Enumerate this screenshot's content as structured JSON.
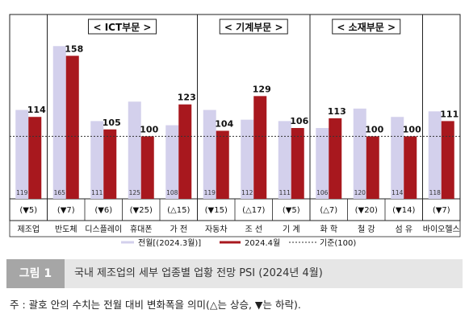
{
  "chart_data": {
    "type": "bar",
    "groups": [
      {
        "label": "< ICT부문 >",
        "start": 1,
        "end": 5
      },
      {
        "label": "< 기계부문 >",
        "start": 5,
        "end": 8
      },
      {
        "label": "< 소재부문 >",
        "start": 8,
        "end": 11
      }
    ],
    "categories": [
      "제조업",
      "반도체",
      "디스플레이",
      "휴대폰",
      "가 전",
      "자동차",
      "조 선",
      "기 계",
      "화 학",
      "철 강",
      "섬 유",
      "바이오헬스"
    ],
    "series": [
      {
        "name": "전월[(2024.3월)]",
        "color": "#d3d0ec",
        "values": [
          119,
          165,
          111,
          125,
          108,
          119,
          112,
          111,
          106,
          120,
          114,
          118
        ]
      },
      {
        "name": "2024.4월",
        "color": "#a8181e",
        "values": [
          114,
          158,
          105,
          100,
          123,
          104,
          129,
          106,
          113,
          100,
          100,
          111
        ]
      }
    ],
    "reference": {
      "name": "기준(100)",
      "value": 100
    },
    "changes": [
      "(▼5)",
      "(▼7)",
      "(▼6)",
      "(▼25)",
      "(△15)",
      "(▼15)",
      "(△17)",
      "(▼5)",
      "(△7)",
      "(▼20)",
      "(▼14)",
      "(▼7)"
    ],
    "ylim": [
      55,
      175
    ]
  },
  "caption": {
    "label": "그림 1",
    "text": "국내 제조업의 세부 업종별 업황 전망 PSI (2024년 4월)"
  },
  "note": "주 : 괄호 안의 수치는 전월 대비 변화폭을 의미(△는 상승, ▼는 하락)."
}
